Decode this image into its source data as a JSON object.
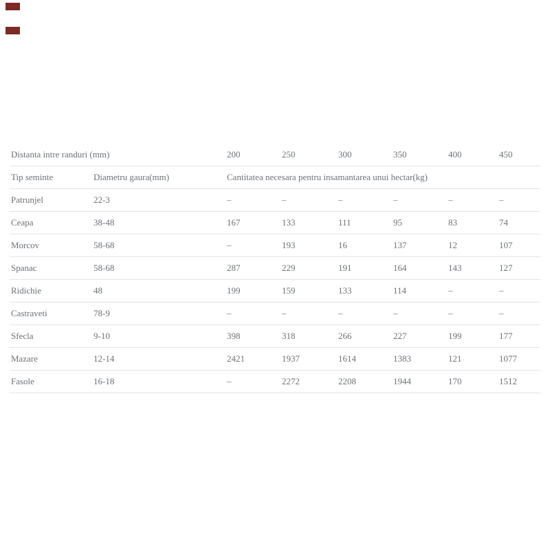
{
  "page": {
    "background": "#ffffff",
    "text_color": "#6d7177",
    "border_color": "#e4e4e4",
    "corner_mark_color": "#7c2a23"
  },
  "table": {
    "header_row1": {
      "label": "Distanta intre randuri (mm)",
      "columns": [
        "200",
        "250",
        "300",
        "350",
        "400",
        "450"
      ]
    },
    "header_row2": {
      "col1": "Tip seminte",
      "col2": "Diametru gaura(mm)",
      "col3": "Cantitatea necesara pentru insamantarea unui hectar(kg)"
    },
    "rows": [
      {
        "name": "Patrunjel",
        "diameter": "22-3",
        "values": [
          "–",
          "–",
          "–",
          "–",
          "–",
          "–"
        ]
      },
      {
        "name": "Ceapa",
        "diameter": "38-48",
        "values": [
          "167",
          "133",
          "111",
          "95",
          "83",
          "74"
        ]
      },
      {
        "name": "Morcov",
        "diameter": "58-68",
        "values": [
          "–",
          "193",
          "16",
          "137",
          "12",
          "107"
        ]
      },
      {
        "name": "Spanac",
        "diameter": "58-68",
        "values": [
          "287",
          "229",
          "191",
          "164",
          "143",
          "127"
        ]
      },
      {
        "name": "Ridichie",
        "diameter": "48",
        "values": [
          "199",
          "159",
          "133",
          "114",
          "–",
          "–"
        ]
      },
      {
        "name": "Castraveti",
        "diameter": "78-9",
        "values": [
          "–",
          "–",
          "–",
          "–",
          "–",
          "–"
        ]
      },
      {
        "name": "Sfecla",
        "diameter": "9-10",
        "values": [
          "398",
          "318",
          "266",
          "227",
          "199",
          "177"
        ]
      },
      {
        "name": "Mazare",
        "diameter": "12-14",
        "values": [
          "2421",
          "1937",
          "1614",
          "1383",
          "121",
          "1077"
        ]
      },
      {
        "name": "Fasole",
        "diameter": "16-18",
        "values": [
          "–",
          "2272",
          "2208",
          "1944",
          "170",
          "1512"
        ]
      }
    ]
  }
}
